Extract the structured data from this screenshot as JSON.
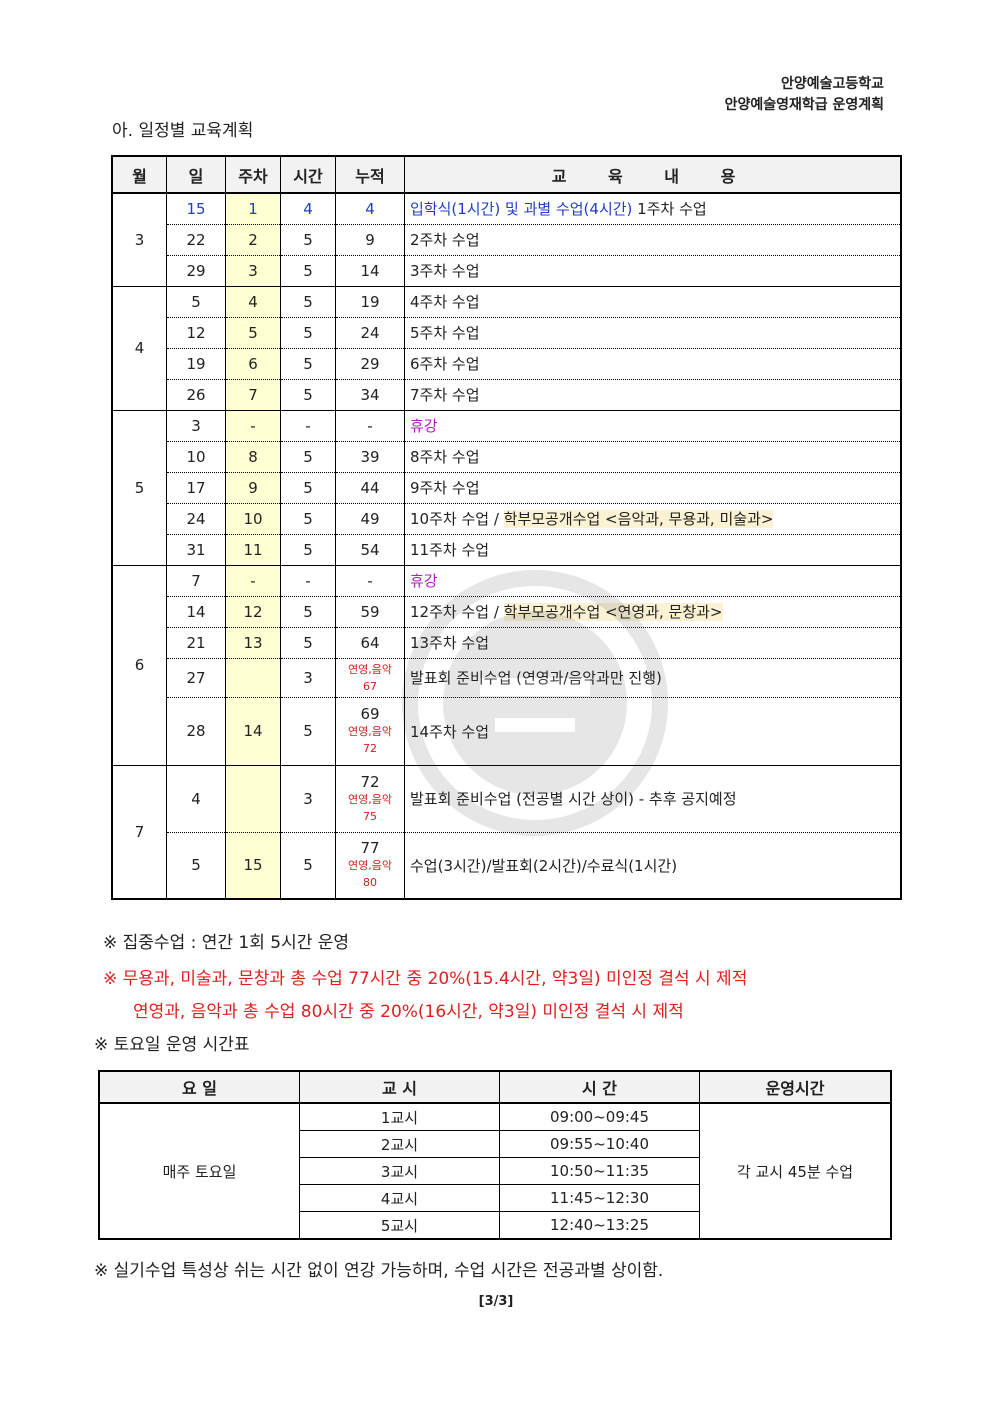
{
  "header": {
    "school": "안양예술고등학교",
    "program": "안양예술영재학급 운영계획"
  },
  "section_title": "아. 일정별 교육계획",
  "schedule": {
    "columns": [
      "월",
      "일",
      "주차",
      "시간",
      "누적",
      "교 육 내 용"
    ],
    "months": [
      {
        "month": "3",
        "rows": [
          {
            "day": "15",
            "week": "1",
            "hours": "4",
            "cumulative": "4",
            "color": "blue",
            "content": [
              {
                "text": "입학식(1시간) 및 과별 수업(4시간)",
                "style": "blue"
              },
              {
                "text": " 1주차 수업",
                "style": ""
              }
            ]
          },
          {
            "day": "22",
            "week": "2",
            "hours": "5",
            "cumulative": "9",
            "content": [
              {
                "text": "2주차 수업",
                "style": ""
              }
            ]
          },
          {
            "day": "29",
            "week": "3",
            "hours": "5",
            "cumulative": "14",
            "content": [
              {
                "text": "3주차 수업",
                "style": ""
              }
            ]
          }
        ]
      },
      {
        "month": "4",
        "rows": [
          {
            "day": "5",
            "week": "4",
            "hours": "5",
            "cumulative": "19",
            "content": [
              {
                "text": "4주차 수업",
                "style": ""
              }
            ]
          },
          {
            "day": "12",
            "week": "5",
            "hours": "5",
            "cumulative": "24",
            "content": [
              {
                "text": "5주차 수업",
                "style": ""
              }
            ]
          },
          {
            "day": "19",
            "week": "6",
            "hours": "5",
            "cumulative": "29",
            "content": [
              {
                "text": "6주차 수업",
                "style": ""
              }
            ]
          },
          {
            "day": "26",
            "week": "7",
            "hours": "5",
            "cumulative": "34",
            "content": [
              {
                "text": "7주차 수업",
                "style": ""
              }
            ]
          }
        ]
      },
      {
        "month": "5",
        "rows": [
          {
            "day": "3",
            "week": "-",
            "hours": "-",
            "cumulative": "-",
            "content": [
              {
                "text": "휴강",
                "style": "purple"
              }
            ]
          },
          {
            "day": "10",
            "week": "8",
            "hours": "5",
            "cumulative": "39",
            "content": [
              {
                "text": "8주차 수업",
                "style": ""
              }
            ]
          },
          {
            "day": "17",
            "week": "9",
            "hours": "5",
            "cumulative": "44",
            "content": [
              {
                "text": "9주차 수업",
                "style": ""
              }
            ]
          },
          {
            "day": "24",
            "week": "10",
            "hours": "5",
            "cumulative": "49",
            "content": [
              {
                "text": "10주차 수업 / ",
                "style": ""
              },
              {
                "text": "학부모공개수업 <음악과, 무용과, 미술과>",
                "style": "hl"
              }
            ]
          },
          {
            "day": "31",
            "week": "11",
            "hours": "5",
            "cumulative": "54",
            "content": [
              {
                "text": "11주차 수업",
                "style": ""
              }
            ]
          }
        ]
      },
      {
        "month": "6",
        "rows": [
          {
            "day": "7",
            "week": "-",
            "hours": "-",
            "cumulative": "-",
            "content": [
              {
                "text": "휴강",
                "style": "purple"
              }
            ]
          },
          {
            "day": "14",
            "week": "12",
            "hours": "5",
            "cumulative": "59",
            "content": [
              {
                "text": "12주차 수업 / ",
                "style": ""
              },
              {
                "text": "학부모공개수업 <연영과, 문창과>",
                "style": "hl"
              }
            ]
          },
          {
            "day": "21",
            "week": "13",
            "hours": "5",
            "cumulative": "64",
            "content": [
              {
                "text": "13주차 수업",
                "style": ""
              }
            ]
          },
          {
            "day": "27",
            "week": "",
            "hours": "3",
            "cumulative": "",
            "note_label": "연영,음악",
            "note_value": "67",
            "content": [
              {
                "text": "발표회 준비수업 (연영과/음악과만 진행)",
                "style": ""
              }
            ]
          },
          {
            "day": "28",
            "week": "14",
            "hours": "5",
            "cumulative": "69",
            "note_label": "연영,음악",
            "note_value": "72",
            "content": [
              {
                "text": "14주차 수업",
                "style": ""
              }
            ]
          }
        ]
      },
      {
        "month": "7",
        "rows": [
          {
            "day": "4",
            "week": "",
            "hours": "3",
            "cumulative": "72",
            "note_label": "연영,음악",
            "note_value": "75",
            "content": [
              {
                "text": "발표회 준비수업 (전공별 시간 상이) - 추후 공지예정",
                "style": ""
              }
            ]
          },
          {
            "day": "5",
            "week": "15",
            "hours": "5",
            "cumulative": "77",
            "note_label": "연영,음악",
            "note_value": "80",
            "content": [
              {
                "text": "수업(3시간)/발표회(2시간)/수료식(1시간)",
                "style": ""
              }
            ]
          }
        ]
      }
    ]
  },
  "notes": {
    "intensive": "※ 집중수업 : 연간 1회 5시간 운영",
    "attendance1": "※ 무용과, 미술과, 문창과 총 수업 77시간 중 20%(15.4시간, 약3일) 미인정 결석 시 제적",
    "attendance2": "연영과, 음악과 총 수업 80시간 중 20%(16시간, 약3일) 미인정 결석 시 제적",
    "saturday_title": "※ 토요일 운영 시간표",
    "practical": "※ 실기수업 특성상 쉬는 시간 없이 연강 가능하며, 수업 시간은 전공과별 상이함."
  },
  "saturday": {
    "columns": [
      "요 일",
      "교 시",
      "시 간",
      "운영시간"
    ],
    "day": "매주 토요일",
    "duration": "각 교시 45분 수업",
    "periods": [
      {
        "period": "1교시",
        "time": "09:00~09:45"
      },
      {
        "period": "2교시",
        "time": "09:55~10:40"
      },
      {
        "period": "3교시",
        "time": "10:50~11:35"
      },
      {
        "period": "4교시",
        "time": "11:45~12:30"
      },
      {
        "period": "5교시",
        "time": "12:40~13:25"
      }
    ]
  },
  "footer": {
    "page": "[3/3]"
  },
  "colors": {
    "blue": "#1f3fbf",
    "purple": "#b020c0",
    "red": "#e02020",
    "week_fill": "#ffffd4",
    "highlight": "#fbf2d3"
  }
}
